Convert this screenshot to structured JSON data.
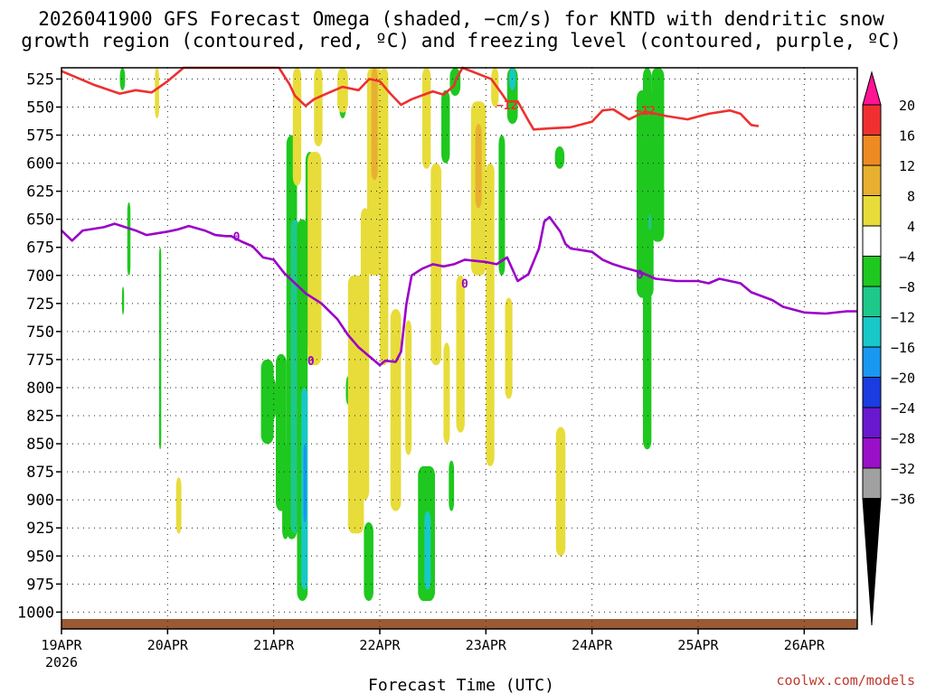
{
  "chart_data": {
    "type": "heatmap",
    "title_lines": [
      "2026041900 GFS Forecast Omega (shaded, −cm/s) for KNTD with dendritic snow",
      "growth region (contoured, red, ºC) and freezing level (contoured, purple, ºC)"
    ],
    "xlabel": "Forecast Time (UTC)",
    "x_ticks": [
      "19APR",
      "20APR",
      "21APR",
      "22APR",
      "23APR",
      "24APR",
      "25APR",
      "26APR"
    ],
    "x_year": "2026",
    "x_range_days": [
      0,
      7.5
    ],
    "y_ticks": [
      525,
      550,
      575,
      600,
      625,
      650,
      675,
      700,
      725,
      750,
      775,
      800,
      825,
      850,
      875,
      900,
      925,
      950,
      975,
      1000
    ],
    "y_range_hpa": [
      515,
      1015
    ],
    "colorbar": {
      "ticks": [
        "20",
        "16",
        "12",
        "8",
        "4",
        "−4",
        "−8",
        "−12",
        "−16",
        "−20",
        "−24",
        "−28",
        "−32",
        "−36"
      ],
      "colors": [
        "#ff1493",
        "#f03030",
        "#ee8a22",
        "#e8b030",
        "#e8dc3a",
        "#ffffff",
        "#1ec81e",
        "#1ec88a",
        "#18c8c8",
        "#1898f0",
        "#1a3ce0",
        "#6a18d0",
        "#9a10c8",
        "#a0a0a0",
        "#000000"
      ]
    },
    "shading": [
      {
        "t0": 0.55,
        "t1": 0.6,
        "p_top": 515,
        "p_bot": 535,
        "v": -6
      },
      {
        "t0": 0.88,
        "t1": 0.92,
        "p_top": 515,
        "p_bot": 560,
        "v": 5
      },
      {
        "t0": 0.92,
        "t1": 0.94,
        "p_top": 675,
        "p_bot": 855,
        "v": -6
      },
      {
        "t0": 0.62,
        "t1": 0.65,
        "p_top": 635,
        "p_bot": 700,
        "v": -6
      },
      {
        "t0": 0.57,
        "t1": 0.59,
        "p_top": 710,
        "p_bot": 735,
        "v": -6
      },
      {
        "t0": 1.08,
        "t1": 1.13,
        "p_top": 880,
        "p_bot": 930,
        "v": 5
      },
      {
        "t0": 1.88,
        "t1": 2.0,
        "p_top": 775,
        "p_bot": 850,
        "v": -6
      },
      {
        "t0": 1.92,
        "t1": 2.02,
        "p_top": 790,
        "p_bot": 830,
        "v": -6
      },
      {
        "t0": 2.02,
        "t1": 2.12,
        "p_top": 770,
        "p_bot": 910,
        "v": -6
      },
      {
        "t0": 2.08,
        "t1": 2.14,
        "p_top": 850,
        "p_bot": 935,
        "v": -6
      },
      {
        "t0": 2.12,
        "t1": 2.22,
        "p_top": 575,
        "p_bot": 935,
        "v": -7
      },
      {
        "t0": 2.16,
        "t1": 2.24,
        "p_top": 650,
        "p_bot": 930,
        "v": -10
      },
      {
        "t0": 2.22,
        "t1": 2.32,
        "p_top": 650,
        "p_bot": 990,
        "v": -7
      },
      {
        "t0": 2.26,
        "t1": 2.32,
        "p_top": 800,
        "p_bot": 980,
        "v": -12
      },
      {
        "t0": 2.28,
        "t1": 2.31,
        "p_top": 850,
        "p_bot": 920,
        "v": -18
      },
      {
        "t0": 2.3,
        "t1": 2.38,
        "p_top": 590,
        "p_bot": 765,
        "v": -6
      },
      {
        "t0": 2.18,
        "t1": 2.26,
        "p_top": 515,
        "p_bot": 620,
        "v": 5
      },
      {
        "t0": 2.32,
        "t1": 2.45,
        "p_top": 590,
        "p_bot": 780,
        "v": 5
      },
      {
        "t0": 2.38,
        "t1": 2.46,
        "p_top": 515,
        "p_bot": 585,
        "v": 5
      },
      {
        "t0": 2.62,
        "t1": 2.68,
        "p_top": 515,
        "p_bot": 560,
        "v": -6
      },
      {
        "t0": 2.68,
        "t1": 2.72,
        "p_top": 790,
        "p_bot": 815,
        "v": -6
      },
      {
        "t0": 2.85,
        "t1": 2.94,
        "p_top": 920,
        "p_bot": 990,
        "v": -7
      },
      {
        "t0": 2.7,
        "t1": 2.85,
        "p_top": 700,
        "p_bot": 930,
        "v": 5
      },
      {
        "t0": 2.6,
        "t1": 2.7,
        "p_top": 515,
        "p_bot": 555,
        "v": 5
      },
      {
        "t0": 2.88,
        "t1": 3.02,
        "p_top": 515,
        "p_bot": 700,
        "v": 5
      },
      {
        "t0": 2.92,
        "t1": 2.98,
        "p_top": 515,
        "p_bot": 615,
        "v": 10
      },
      {
        "t0": 3.0,
        "t1": 3.08,
        "p_top": 515,
        "p_bot": 780,
        "v": 5
      },
      {
        "t0": 2.82,
        "t1": 2.9,
        "p_top": 640,
        "p_bot": 900,
        "v": 5
      },
      {
        "t0": 3.1,
        "t1": 3.2,
        "p_top": 730,
        "p_bot": 910,
        "v": 5
      },
      {
        "t0": 3.24,
        "t1": 3.3,
        "p_top": 740,
        "p_bot": 860,
        "v": 5
      },
      {
        "t0": 3.36,
        "t1": 3.52,
        "p_top": 870,
        "p_bot": 990,
        "v": -7
      },
      {
        "t0": 3.42,
        "t1": 3.48,
        "p_top": 910,
        "p_bot": 980,
        "v": -12
      },
      {
        "t0": 3.44,
        "t1": 3.47,
        "p_top": 935,
        "p_bot": 970,
        "v": -15
      },
      {
        "t0": 3.4,
        "t1": 3.48,
        "p_top": 515,
        "p_bot": 605,
        "v": 5
      },
      {
        "t0": 3.48,
        "t1": 3.58,
        "p_top": 600,
        "p_bot": 780,
        "v": 5
      },
      {
        "t0": 3.6,
        "t1": 3.66,
        "p_top": 760,
        "p_bot": 850,
        "v": 5
      },
      {
        "t0": 3.65,
        "t1": 3.7,
        "p_top": 865,
        "p_bot": 910,
        "v": -6
      },
      {
        "t0": 3.58,
        "t1": 3.66,
        "p_top": 535,
        "p_bot": 600,
        "v": -6
      },
      {
        "t0": 3.66,
        "t1": 3.76,
        "p_top": 515,
        "p_bot": 540,
        "v": -6
      },
      {
        "t0": 3.72,
        "t1": 3.8,
        "p_top": 700,
        "p_bot": 840,
        "v": 5
      },
      {
        "t0": 3.86,
        "t1": 4.0,
        "p_top": 545,
        "p_bot": 700,
        "v": 5
      },
      {
        "t0": 3.9,
        "t1": 3.96,
        "p_top": 565,
        "p_bot": 640,
        "v": 10
      },
      {
        "t0": 4.0,
        "t1": 4.08,
        "p_top": 600,
        "p_bot": 870,
        "v": 5
      },
      {
        "t0": 4.05,
        "t1": 4.12,
        "p_top": 515,
        "p_bot": 550,
        "v": 5
      },
      {
        "t0": 4.12,
        "t1": 4.18,
        "p_top": 575,
        "p_bot": 700,
        "v": -6
      },
      {
        "t0": 4.18,
        "t1": 4.25,
        "p_top": 720,
        "p_bot": 810,
        "v": 5
      },
      {
        "t0": 4.2,
        "t1": 4.3,
        "p_top": 515,
        "p_bot": 565,
        "v": -7
      },
      {
        "t0": 4.22,
        "t1": 4.28,
        "p_top": 515,
        "p_bot": 535,
        "v": -12
      },
      {
        "t0": 4.65,
        "t1": 4.74,
        "p_top": 585,
        "p_bot": 605,
        "v": -6
      },
      {
        "t0": 4.66,
        "t1": 4.75,
        "p_top": 835,
        "p_bot": 950,
        "v": 5
      },
      {
        "t0": 5.48,
        "t1": 5.56,
        "p_top": 515,
        "p_bot": 855,
        "v": -6
      },
      {
        "t0": 5.42,
        "t1": 5.58,
        "p_top": 535,
        "p_bot": 720,
        "v": -6
      },
      {
        "t0": 5.56,
        "t1": 5.68,
        "p_top": 515,
        "p_bot": 670,
        "v": -6
      },
      {
        "t0": 5.53,
        "t1": 5.56,
        "p_top": 645,
        "p_bot": 660,
        "v": -9
      }
    ],
    "series": [
      {
        "name": "dendritic snow growth level (-12 ºC)",
        "color": "#ee3030",
        "label": "−12",
        "label_at": [
          [
            4.2,
            548
          ],
          [
            5.5,
            553
          ]
        ],
        "points": [
          [
            0.0,
            518
          ],
          [
            0.3,
            530
          ],
          [
            0.55,
            538
          ],
          [
            0.7,
            535
          ],
          [
            0.85,
            537
          ],
          [
            1.0,
            527
          ],
          [
            1.1,
            519
          ],
          [
            1.15,
            515
          ],
          [
            2.05,
            515
          ],
          [
            2.15,
            530
          ],
          [
            2.2,
            540
          ],
          [
            2.3,
            549
          ],
          [
            2.38,
            543
          ],
          [
            2.5,
            538
          ],
          [
            2.65,
            532
          ],
          [
            2.8,
            535
          ],
          [
            2.9,
            525
          ],
          [
            3.0,
            527
          ],
          [
            3.1,
            538
          ],
          [
            3.2,
            548
          ],
          [
            3.3,
            543
          ],
          [
            3.5,
            536
          ],
          [
            3.6,
            539
          ],
          [
            3.7,
            531
          ],
          [
            3.72,
            525
          ],
          [
            3.78,
            515
          ],
          [
            4.05,
            525
          ],
          [
            4.15,
            538
          ],
          [
            4.2,
            545
          ],
          [
            4.3,
            545
          ],
          [
            4.4,
            562
          ],
          [
            4.45,
            570
          ],
          [
            4.6,
            569
          ],
          [
            4.8,
            568
          ],
          [
            5.0,
            563
          ],
          [
            5.1,
            553
          ],
          [
            5.2,
            552
          ],
          [
            5.35,
            561
          ],
          [
            5.5,
            554
          ],
          [
            5.7,
            558
          ],
          [
            5.9,
            561
          ],
          [
            6.1,
            556
          ],
          [
            6.3,
            553
          ],
          [
            6.4,
            556
          ],
          [
            6.5,
            566
          ],
          [
            6.57,
            567
          ]
        ]
      },
      {
        "name": "freezing level (0 ºC)",
        "color": "#9a00c8",
        "label": "0",
        "label_at": [
          [
            1.65,
            665
          ],
          [
            2.35,
            776
          ],
          [
            3.8,
            707
          ],
          [
            5.45,
            699
          ]
        ],
        "points": [
          [
            0.0,
            660
          ],
          [
            0.1,
            669
          ],
          [
            0.2,
            660
          ],
          [
            0.4,
            657
          ],
          [
            0.5,
            654
          ],
          [
            0.7,
            660
          ],
          [
            0.8,
            664
          ],
          [
            1.0,
            661
          ],
          [
            1.1,
            659
          ],
          [
            1.2,
            656
          ],
          [
            1.35,
            660
          ],
          [
            1.45,
            664
          ],
          [
            1.55,
            665
          ],
          [
            1.6,
            665
          ],
          [
            1.7,
            670
          ],
          [
            1.8,
            674
          ],
          [
            1.9,
            684
          ],
          [
            2.0,
            686
          ],
          [
            2.1,
            698
          ],
          [
            2.3,
            716
          ],
          [
            2.45,
            725
          ],
          [
            2.6,
            739
          ],
          [
            2.7,
            753
          ],
          [
            2.8,
            764
          ],
          [
            2.9,
            772
          ],
          [
            3.0,
            780
          ],
          [
            3.05,
            776
          ],
          [
            3.15,
            777
          ],
          [
            3.2,
            768
          ],
          [
            3.25,
            726
          ],
          [
            3.3,
            700
          ],
          [
            3.4,
            694
          ],
          [
            3.5,
            690
          ],
          [
            3.6,
            692
          ],
          [
            3.7,
            690
          ],
          [
            3.8,
            686
          ],
          [
            4.0,
            688
          ],
          [
            4.1,
            690
          ],
          [
            4.2,
            684
          ],
          [
            4.3,
            705
          ],
          [
            4.4,
            699
          ],
          [
            4.5,
            676
          ],
          [
            4.55,
            652
          ],
          [
            4.6,
            648
          ],
          [
            4.7,
            661
          ],
          [
            4.75,
            672
          ],
          [
            4.8,
            676
          ],
          [
            5.0,
            679
          ],
          [
            5.1,
            686
          ],
          [
            5.2,
            690
          ],
          [
            5.3,
            693
          ],
          [
            5.45,
            697
          ],
          [
            5.6,
            703
          ],
          [
            5.8,
            705
          ],
          [
            6.0,
            705
          ],
          [
            6.1,
            707
          ],
          [
            6.2,
            703
          ],
          [
            6.4,
            707
          ],
          [
            6.5,
            715
          ],
          [
            6.7,
            722
          ],
          [
            6.8,
            728
          ],
          [
            7.0,
            733
          ],
          [
            7.2,
            734
          ],
          [
            7.4,
            732
          ],
          [
            7.5,
            732
          ]
        ]
      }
    ],
    "credit": "coolwx.com/models"
  }
}
